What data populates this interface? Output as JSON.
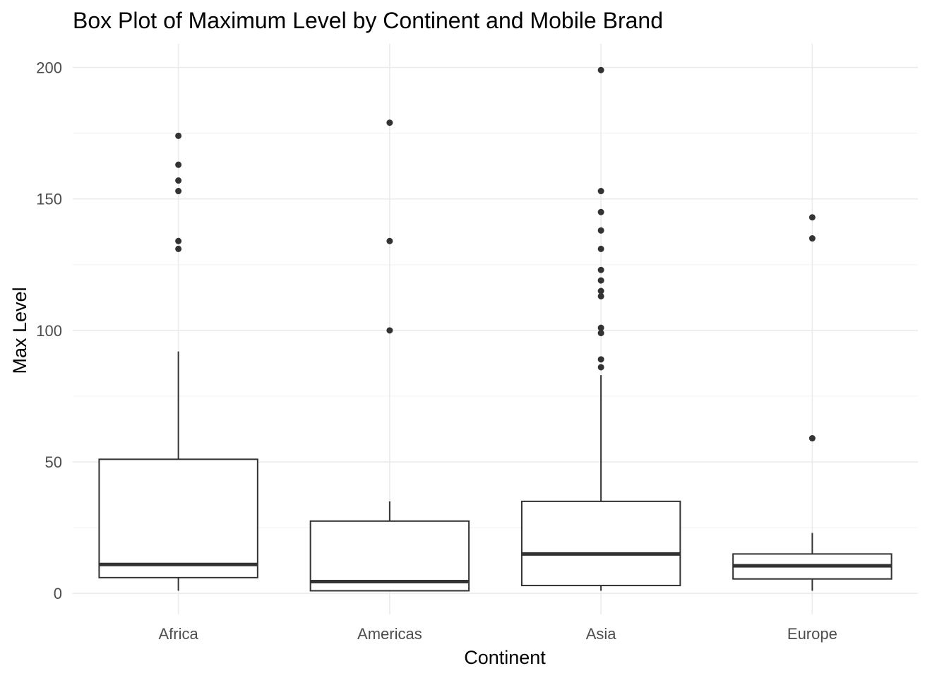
{
  "chart_data": {
    "type": "boxplot",
    "title": "Box Plot of Maximum Level by Continent and Mobile Brand",
    "xlabel": "Continent",
    "ylabel": "Max Level",
    "ylim": [
      -8,
      209
    ],
    "yticks": [
      0,
      50,
      100,
      150,
      200
    ],
    "grid": true,
    "legend": "none",
    "categories": [
      "Africa",
      "Americas",
      "Asia",
      "Europe"
    ],
    "boxes": [
      {
        "category": "Africa",
        "whisker_low": 1,
        "q1": 6,
        "median": 11,
        "q3": 51,
        "whisker_high": 92,
        "outliers": [
          131,
          134,
          153,
          157,
          163,
          174
        ]
      },
      {
        "category": "Americas",
        "whisker_low": 1,
        "q1": 1,
        "median": 4.5,
        "q3": 27.5,
        "whisker_high": 35,
        "outliers": [
          100,
          134,
          179
        ]
      },
      {
        "category": "Asia",
        "whisker_low": 1,
        "q1": 3,
        "median": 15,
        "q3": 35,
        "whisker_high": 83,
        "outliers": [
          86,
          89,
          99,
          101,
          113,
          115,
          119,
          123,
          131,
          138,
          145,
          153,
          199
        ]
      },
      {
        "category": "Europe",
        "whisker_low": 1,
        "q1": 5.5,
        "median": 10.5,
        "q3": 15,
        "whisker_high": 23,
        "outliers": [
          59,
          135,
          143
        ]
      }
    ],
    "colors": {
      "box_outline": "#333333",
      "box_fill": "#ffffff",
      "grid_major": "#ebebeb",
      "grid_minor": "#f3f3f3",
      "tick_text": "#4d4d4d",
      "title_text": "#000000"
    }
  }
}
